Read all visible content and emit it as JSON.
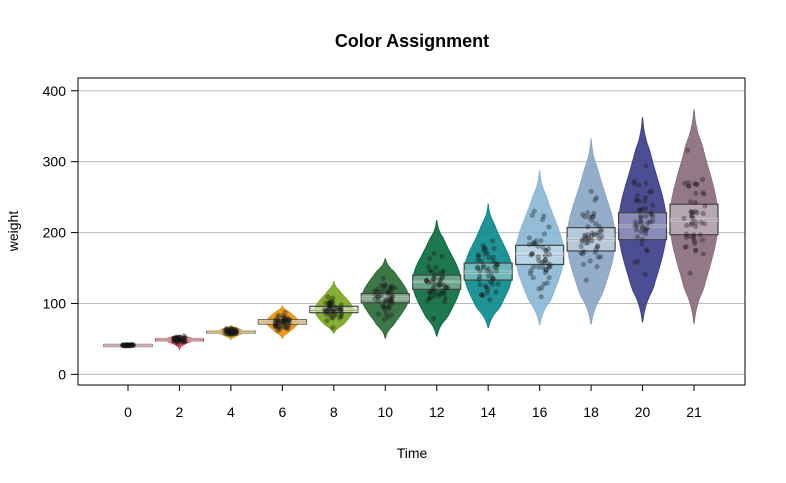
{
  "chart_data": {
    "type": "pirate",
    "title": "Color Assignment",
    "xlabel": "Time",
    "ylabel": "weight",
    "categories": [
      "0",
      "2",
      "4",
      "6",
      "8",
      "10",
      "12",
      "14",
      "16",
      "18",
      "20",
      "21"
    ],
    "ylim": [
      -15,
      418
    ],
    "yticks": [
      0,
      100,
      200,
      300,
      400
    ],
    "grid": "horizontal",
    "legend": "none",
    "groups": [
      {
        "label": "0",
        "color": "#e0727c",
        "mean": 41,
        "ci": [
          40,
          42
        ],
        "min": 39,
        "max": 43,
        "median": 41
      },
      {
        "label": "2",
        "color": "#d9444e",
        "mean": 49,
        "ci": [
          48,
          50
        ],
        "min": 35,
        "max": 55,
        "median": 49
      },
      {
        "label": "4",
        "color": "#c9a21f",
        "mean": 60,
        "ci": [
          58,
          61
        ],
        "min": 49,
        "max": 68,
        "median": 60
      },
      {
        "label": "6",
        "color": "#e8900f",
        "mean": 74,
        "ci": [
          71,
          77
        ],
        "min": 51,
        "max": 96,
        "median": 74
      },
      {
        "label": "8",
        "color": "#7aa821",
        "mean": 91,
        "ci": [
          87,
          96
        ],
        "min": 58,
        "max": 131,
        "median": 90
      },
      {
        "label": "10",
        "color": "#2c6b38",
        "mean": 108,
        "ci": [
          101,
          114
        ],
        "min": 51,
        "max": 163,
        "median": 108
      },
      {
        "label": "12",
        "color": "#0a6b40",
        "mean": 130,
        "ci": [
          120,
          140
        ],
        "min": 54,
        "max": 217,
        "median": 128
      },
      {
        "label": "14",
        "color": "#0c8a8c",
        "mean": 144,
        "ci": [
          133,
          157
        ],
        "min": 66,
        "max": 240,
        "median": 144
      },
      {
        "label": "16",
        "color": "#8ab7d6",
        "mean": 169,
        "ci": [
          155,
          182
        ],
        "min": 70,
        "max": 287,
        "median": 168
      },
      {
        "label": "18",
        "color": "#8aa6c6",
        "mean": 190,
        "ci": [
          174,
          207
        ],
        "min": 71,
        "max": 332,
        "median": 190
      },
      {
        "label": "20",
        "color": "#3d3f8a",
        "mean": 209,
        "ci": [
          190,
          228
        ],
        "min": 74,
        "max": 362,
        "median": 209
      },
      {
        "label": "21",
        "color": "#8a6e7d",
        "mean": 218,
        "ci": [
          197,
          240
        ],
        "min": 72,
        "max": 373,
        "median": 218
      }
    ]
  }
}
